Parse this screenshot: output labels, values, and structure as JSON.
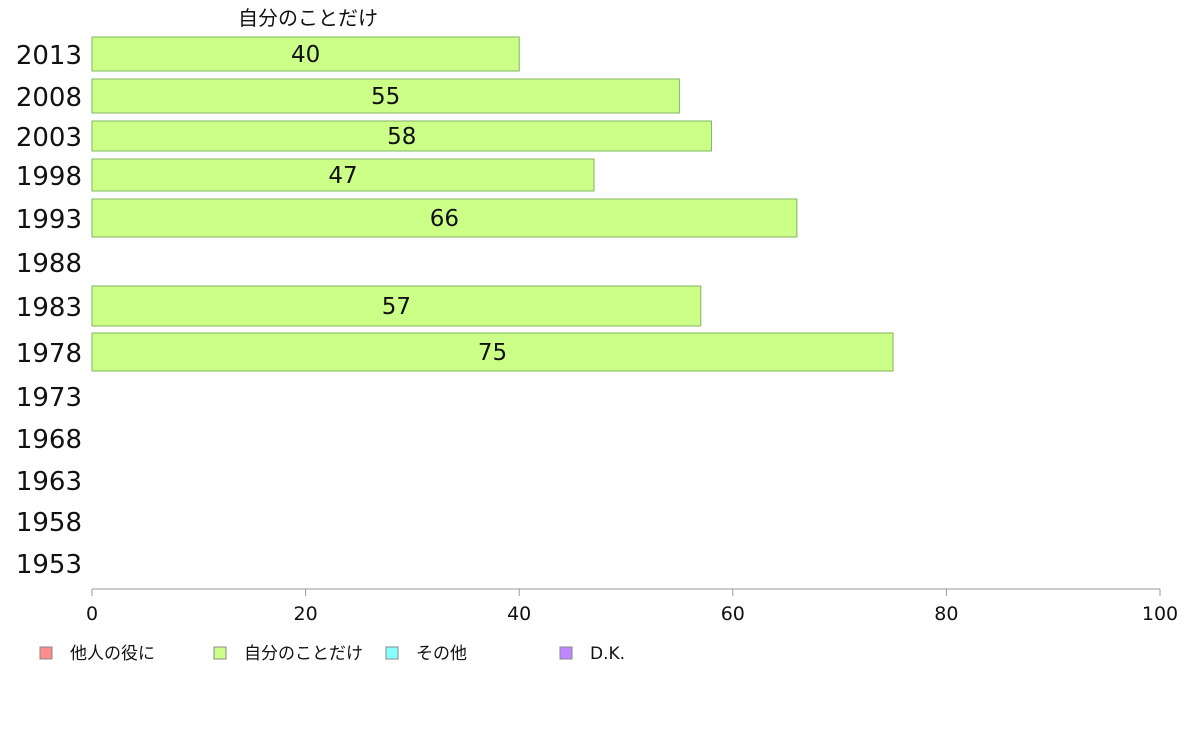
{
  "chart_data": {
    "type": "bar",
    "orientation": "horizontal",
    "title": "",
    "series_title": "自分のことだけ",
    "categories": [
      "2013",
      "2008",
      "2003",
      "1998",
      "1993",
      "1988",
      "1983",
      "1978",
      "1973",
      "1968",
      "1963",
      "1958",
      "1953"
    ],
    "series": [
      {
        "name": "他人の役に",
        "color": "#ff8c8c",
        "values": [
          null,
          null,
          null,
          null,
          null,
          null,
          null,
          null,
          null,
          null,
          null,
          null,
          null
        ]
      },
      {
        "name": "自分のことだけ",
        "color": "#ccff88",
        "values": [
          40,
          55,
          58,
          47,
          66,
          null,
          57,
          75,
          null,
          null,
          null,
          null,
          null
        ]
      },
      {
        "name": "その他",
        "color": "#88ffff",
        "values": [
          null,
          null,
          null,
          null,
          null,
          null,
          null,
          null,
          null,
          null,
          null,
          null,
          null
        ]
      },
      {
        "name": "D.K.",
        "color": "#bb88ff",
        "values": [
          null,
          null,
          null,
          null,
          null,
          null,
          null,
          null,
          null,
          null,
          null,
          null,
          null
        ]
      }
    ],
    "data_labels": [
      "40",
      "55",
      "58",
      "47",
      "66",
      "",
      "57",
      "75",
      "",
      "",
      "",
      "",
      ""
    ],
    "xlim": [
      0,
      100
    ],
    "xticks": [
      "0",
      "20",
      "40",
      "60",
      "80",
      "100"
    ],
    "grid": false,
    "legend_position": "bottom-left"
  }
}
